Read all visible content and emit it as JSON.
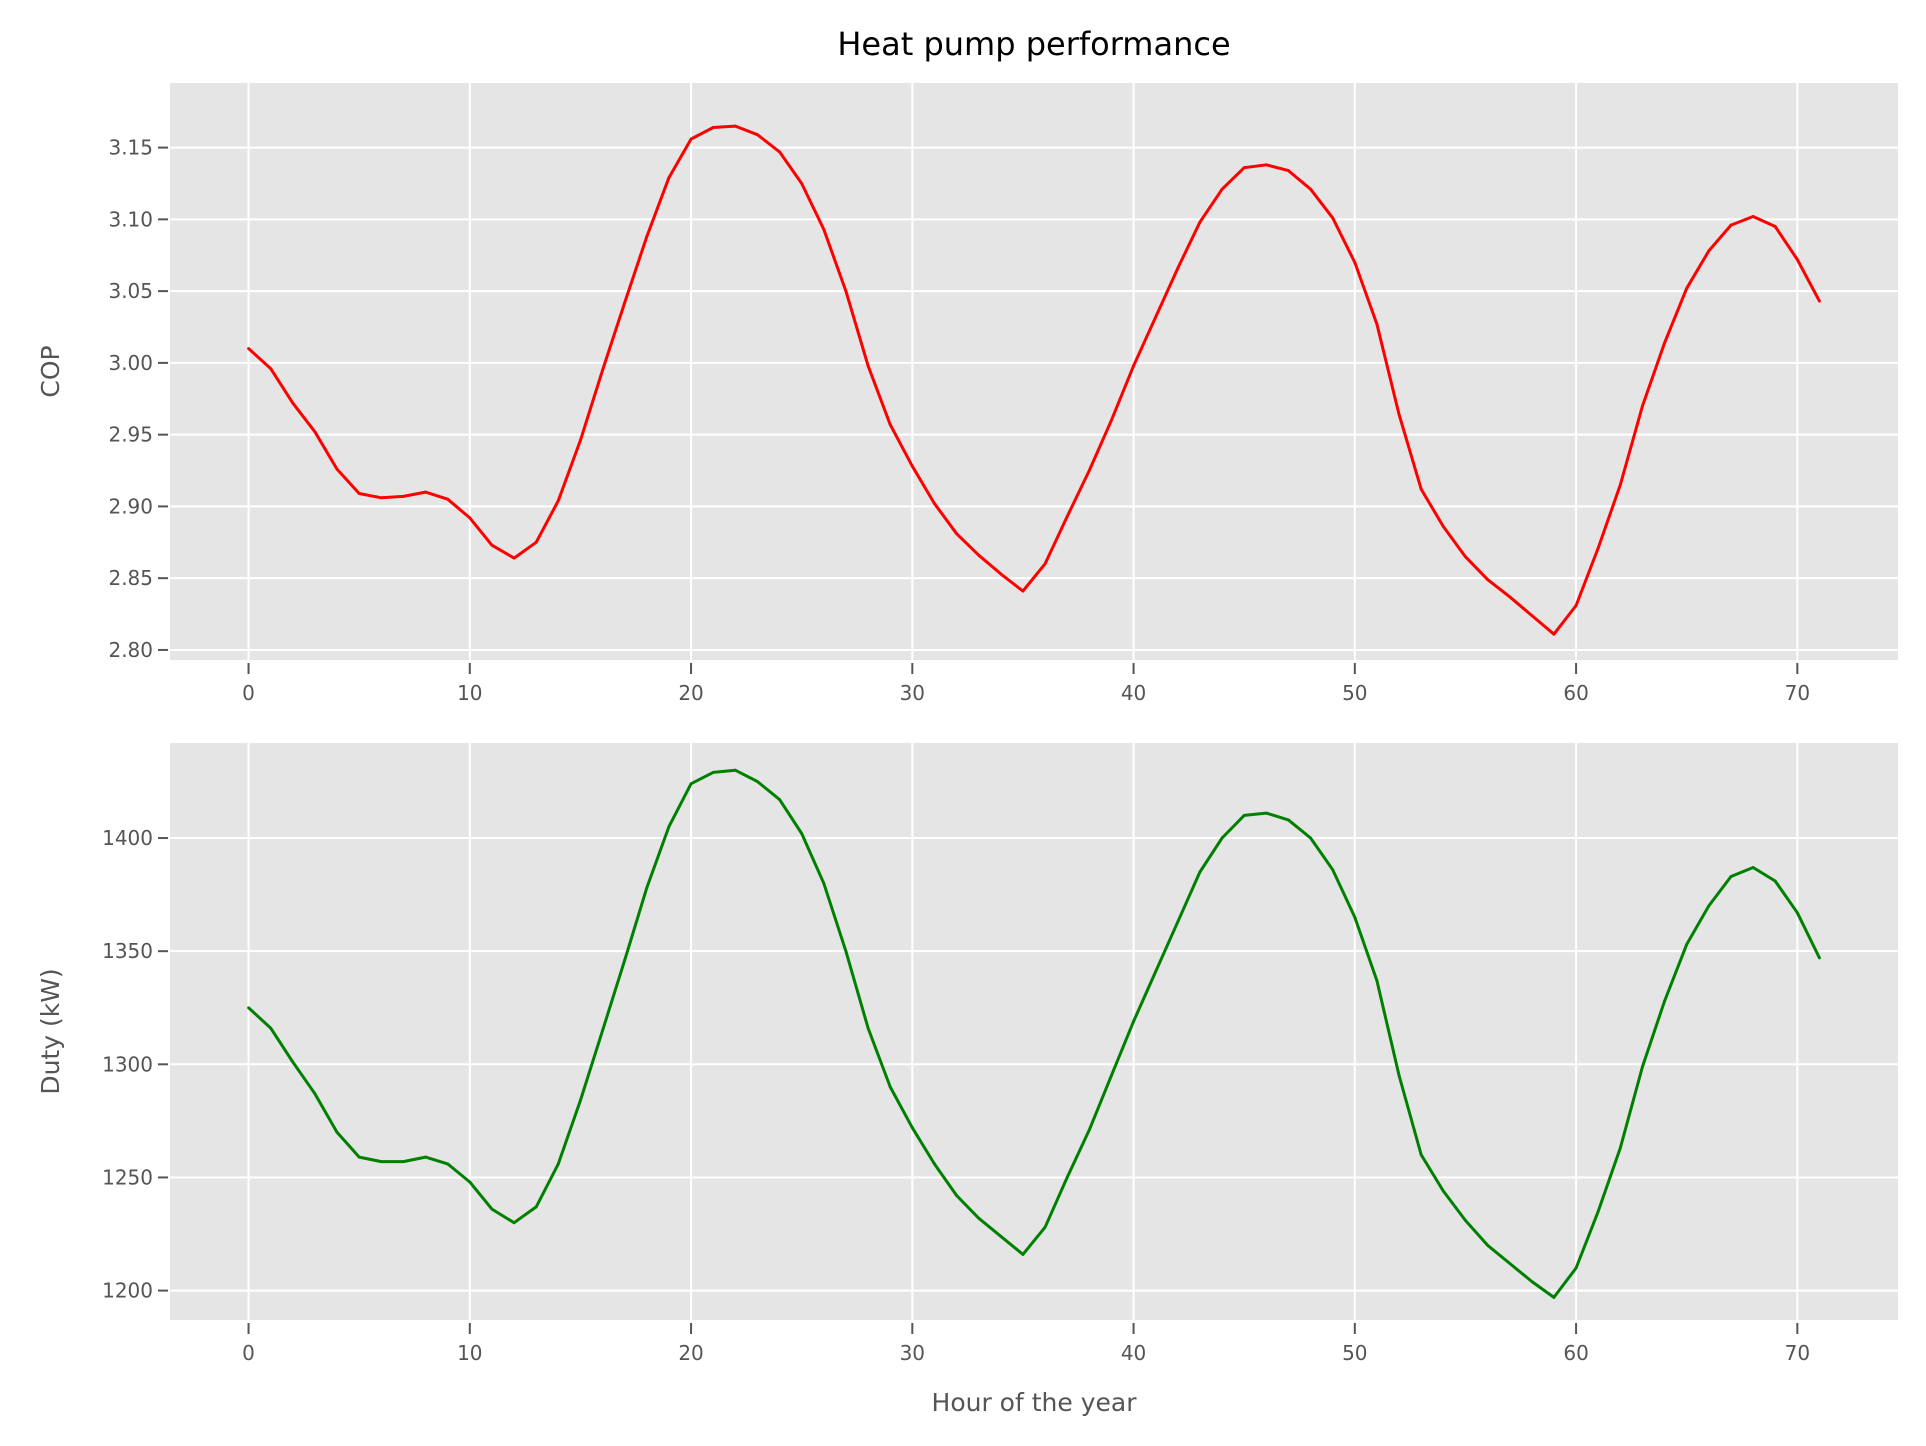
{
  "figure": {
    "title": "Heat pump performance",
    "style": {
      "background": "#ffffff",
      "axes_facecolor": "#e5e5e5",
      "grid_color": "#ffffff",
      "tick_color": "#555555",
      "text_color": "#555555"
    }
  },
  "chart_data": [
    {
      "type": "line",
      "title": "Heat pump performance",
      "xlabel": "",
      "ylabel": "COP",
      "xlim": [
        -3.55,
        74.55
      ],
      "ylim": [
        2.793,
        3.195
      ],
      "xticks": [
        0,
        10,
        20,
        30,
        40,
        50,
        60,
        70
      ],
      "yticks": [
        2.8,
        2.85,
        2.9,
        2.95,
        3.0,
        3.05,
        3.1,
        3.15
      ],
      "ytick_labels": [
        "2.80",
        "2.85",
        "2.90",
        "2.95",
        "3.00",
        "3.05",
        "3.10",
        "3.15"
      ],
      "grid": true,
      "color": "#ff0000",
      "series": [
        {
          "x": [
            0,
            1,
            2,
            3,
            4,
            5,
            6,
            7,
            8,
            9,
            10,
            11,
            12,
            13,
            14,
            15,
            16,
            17,
            18,
            19,
            20,
            21,
            22,
            23,
            24,
            25,
            26,
            27,
            28,
            29,
            30,
            31,
            32,
            33,
            34,
            35,
            36,
            37,
            38,
            39,
            40,
            41,
            42,
            43,
            44,
            45,
            46,
            47,
            48,
            49,
            50,
            51,
            52,
            53,
            54,
            55,
            56,
            57,
            58,
            59,
            60,
            61,
            62,
            63,
            64,
            65,
            66,
            67,
            68,
            69,
            70,
            71
          ],
          "values": [
            3.01,
            2.996,
            2.972,
            2.952,
            2.926,
            2.909,
            2.906,
            2.907,
            2.91,
            2.905,
            2.892,
            2.873,
            2.864,
            2.875,
            2.904,
            2.946,
            2.995,
            3.042,
            3.088,
            3.129,
            3.156,
            3.164,
            3.165,
            3.159,
            3.147,
            3.125,
            3.093,
            3.05,
            2.998,
            2.957,
            2.928,
            2.902,
            2.881,
            2.866,
            2.853,
            2.841,
            2.86,
            2.893,
            2.925,
            2.96,
            2.998,
            3.032,
            3.066,
            3.098,
            3.121,
            3.136,
            3.138,
            3.134,
            3.121,
            3.101,
            3.07,
            3.027,
            2.964,
            2.912,
            2.886,
            2.865,
            2.849,
            2.837,
            2.824,
            2.811,
            2.831,
            2.871,
            2.915,
            2.97,
            3.014,
            3.052,
            3.078,
            3.096,
            3.102,
            3.095,
            3.072,
            3.043
          ]
        }
      ]
    },
    {
      "type": "line",
      "xlabel": "Hour of the year",
      "ylabel": "Duty (kW)",
      "xlim": [
        -3.55,
        74.55
      ],
      "ylim": [
        1187,
        1442
      ],
      "xticks": [
        0,
        10,
        20,
        30,
        40,
        50,
        60,
        70
      ],
      "yticks": [
        1200,
        1250,
        1300,
        1350,
        1400
      ],
      "ytick_labels": [
        "1200",
        "1250",
        "1300",
        "1350",
        "1400"
      ],
      "grid": true,
      "color": "#008000",
      "series": [
        {
          "x": [
            0,
            1,
            2,
            3,
            4,
            5,
            6,
            7,
            8,
            9,
            10,
            11,
            12,
            13,
            14,
            15,
            16,
            17,
            18,
            19,
            20,
            21,
            22,
            23,
            24,
            25,
            26,
            27,
            28,
            29,
            30,
            31,
            32,
            33,
            34,
            35,
            36,
            37,
            38,
            39,
            40,
            41,
            42,
            43,
            44,
            45,
            46,
            47,
            48,
            49,
            50,
            51,
            52,
            53,
            54,
            55,
            56,
            57,
            58,
            59,
            60,
            61,
            62,
            63,
            64,
            65,
            66,
            67,
            68,
            69,
            70,
            71
          ],
          "values": [
            1325,
            1316,
            1301,
            1287,
            1270,
            1259,
            1257,
            1257,
            1259,
            1256,
            1248,
            1236,
            1230,
            1237,
            1256,
            1284,
            1315,
            1346,
            1378,
            1405,
            1424,
            1429,
            1430,
            1425,
            1417,
            1402,
            1380,
            1350,
            1316,
            1290,
            1272,
            1256,
            1242,
            1232,
            1224,
            1216,
            1228,
            1250,
            1271,
            1295,
            1319,
            1341,
            1363,
            1385,
            1400,
            1410,
            1411,
            1408,
            1400,
            1386,
            1365,
            1337,
            1295,
            1260,
            1244,
            1231,
            1220,
            1212,
            1204,
            1197,
            1210,
            1235,
            1263,
            1299,
            1328,
            1353,
            1370,
            1383,
            1387,
            1381,
            1367,
            1347
          ]
        }
      ]
    }
  ]
}
